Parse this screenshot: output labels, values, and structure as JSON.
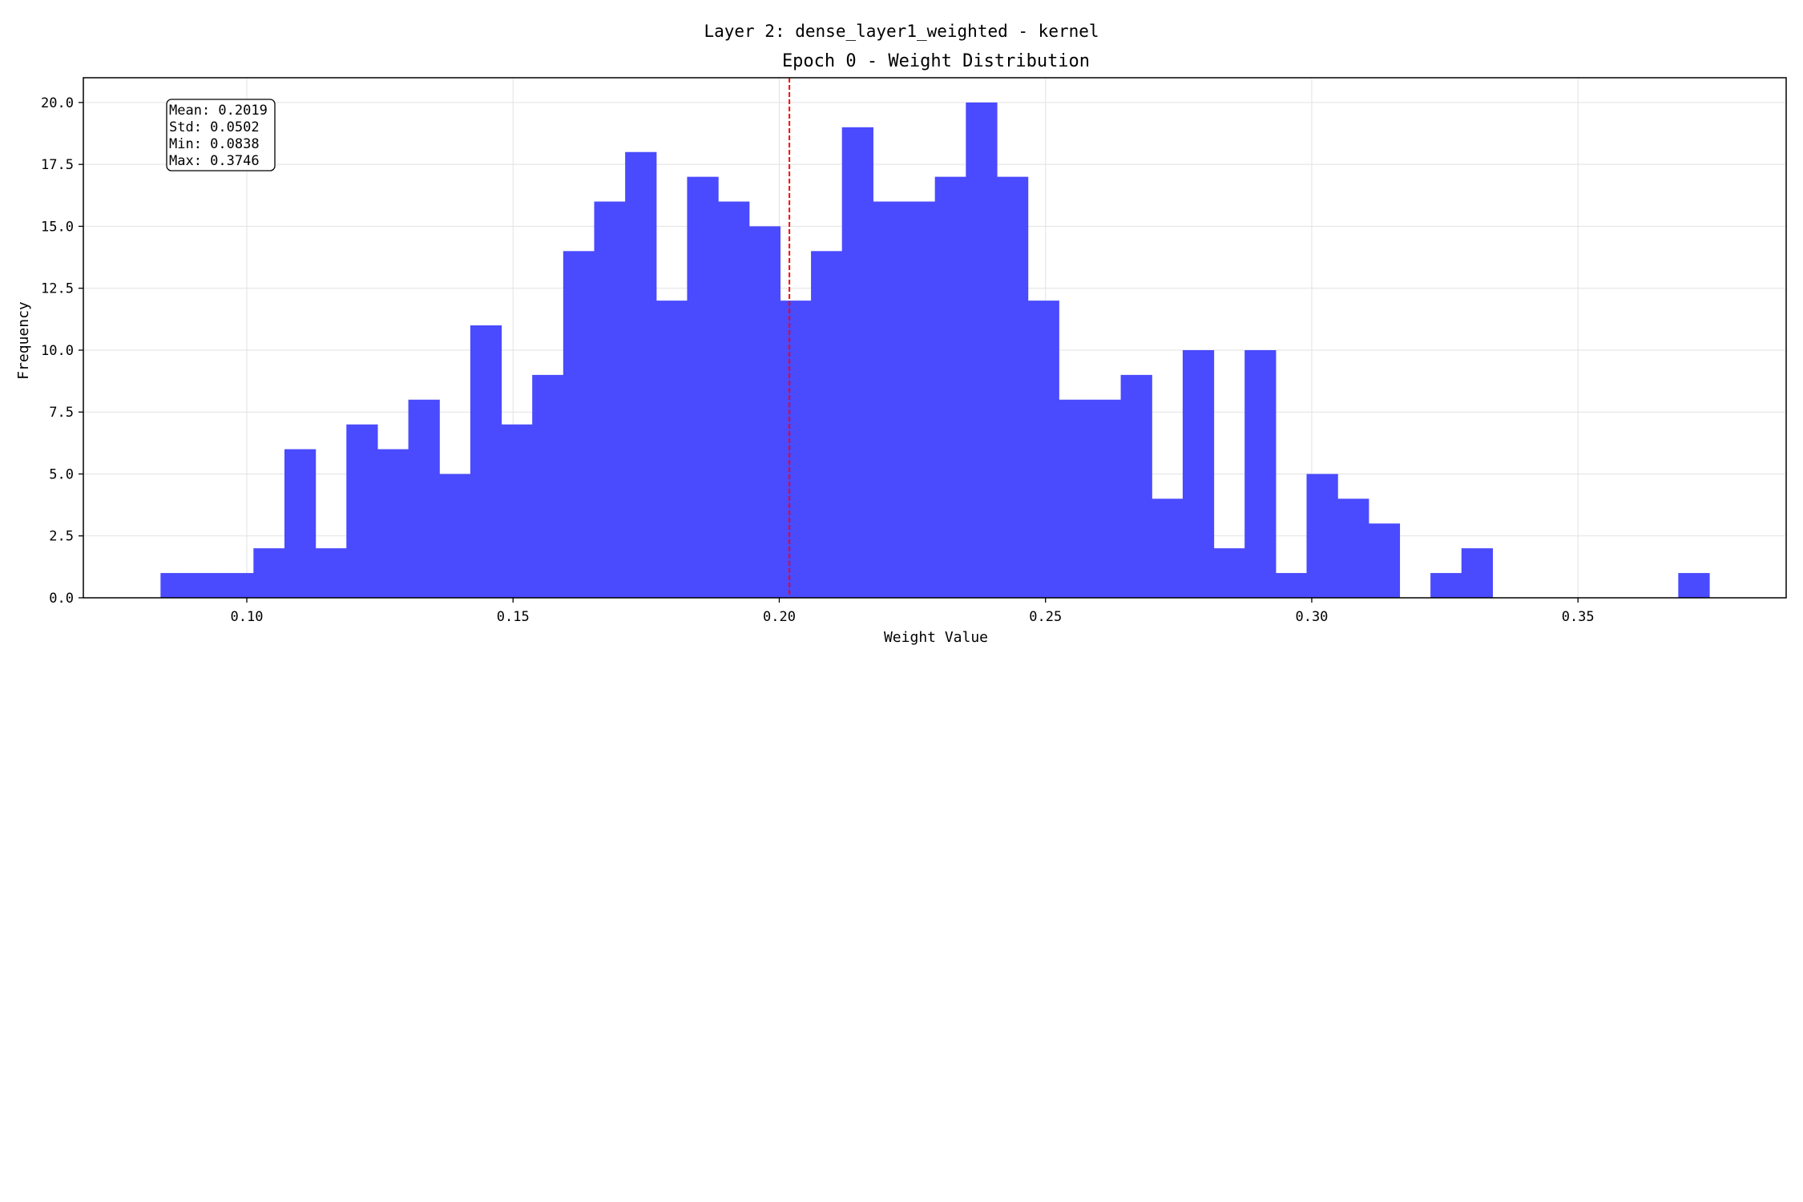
{
  "figure": {
    "suptitle": "Layer 2: dense_layer1_weighted - kernel",
    "title": "Epoch 0 - Weight Distribution"
  },
  "stats_box": {
    "lines": [
      "Mean: 0.2019",
      "Std: 0.0502",
      "Min: 0.0838",
      "Max: 0.3746"
    ]
  },
  "colors": {
    "bar": "#4a4aff",
    "mean_line": "#ff0000",
    "grid": "#e2e2e2",
    "axes": "#000000"
  },
  "chart_data": {
    "type": "bar",
    "title": "Epoch 0 - Weight Distribution",
    "xlabel": "Weight Value",
    "ylabel": "Frequency",
    "bin_start": 0.0838,
    "bin_width": 0.005817,
    "counts": [
      1,
      1,
      1,
      2,
      6,
      2,
      7,
      6,
      8,
      5,
      11,
      7,
      9,
      14,
      16,
      18,
      12,
      17,
      16,
      15,
      12,
      14,
      19,
      16,
      16,
      17,
      20,
      17,
      12,
      8,
      8,
      9,
      4,
      10,
      2,
      10,
      1,
      5,
      4,
      3,
      0,
      1,
      2,
      0,
      0,
      0,
      0,
      0,
      0,
      1
    ],
    "xlim": [
      0.0693,
      0.3891
    ],
    "ylim": [
      0,
      21
    ],
    "xticks": [
      0.1,
      0.15,
      0.2,
      0.25,
      0.3,
      0.35
    ],
    "xtick_labels": [
      "0.10",
      "0.15",
      "0.20",
      "0.25",
      "0.30",
      "0.35"
    ],
    "yticks": [
      0,
      2.5,
      5,
      7.5,
      10,
      12.5,
      15,
      17.5,
      20
    ],
    "ytick_labels": [
      "0.0",
      "2.5",
      "5.0",
      "7.5",
      "10.0",
      "12.5",
      "15.0",
      "17.5",
      "20.0"
    ],
    "mean_line": 0.2019,
    "grid": true
  }
}
